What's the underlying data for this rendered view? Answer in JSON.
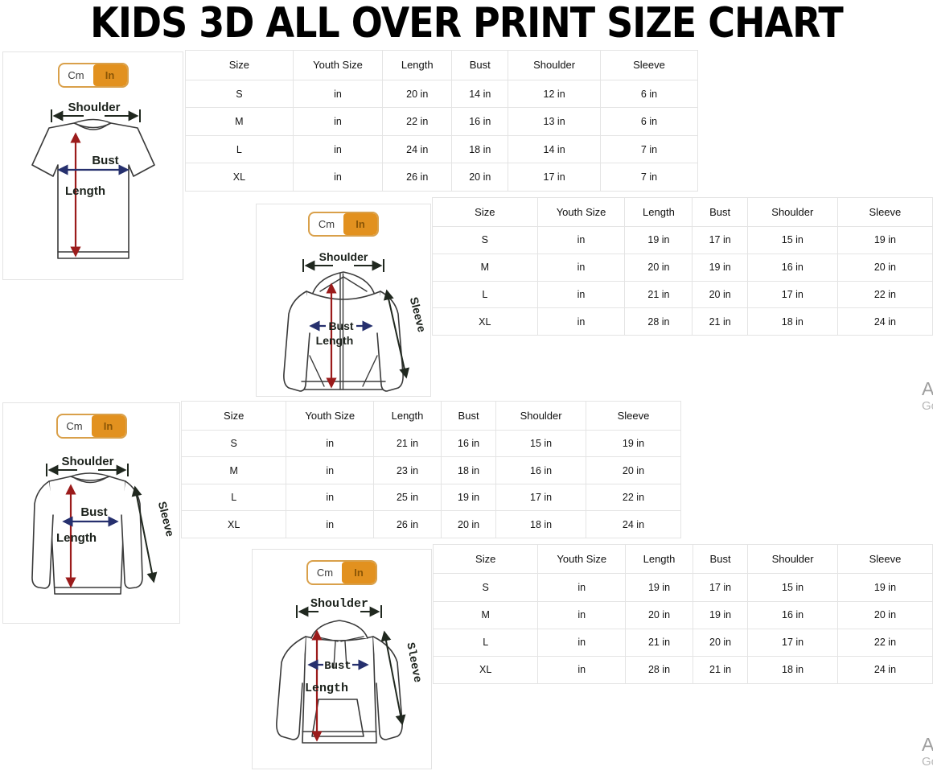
{
  "title": "KIDS 3D ALL OVER PRINT SIZE CHART",
  "unit_toggle": {
    "cm": "Cm",
    "in": "In",
    "selected": "In"
  },
  "diagram_labels": {
    "shoulder": "Shoulder",
    "bust": "Bust",
    "length": "Length",
    "sleeve": "Sleeve"
  },
  "watermark": {
    "line1": "A",
    "line2": "Go"
  },
  "colors": {
    "accent_orange": "#e2911f",
    "toggle_border": "#d9a04a",
    "toggle_in_text": "#8a5505",
    "arrow_red": "#9b1b1b",
    "arrow_navy": "#26306e",
    "arrow_black": "#20281f",
    "table_grid": "#e4e4e4",
    "watermark_gray": "#9e9e9e"
  },
  "sections": [
    {
      "garment": "t-shirt",
      "table": {
        "headers": [
          "Size",
          "Youth Size",
          "Length",
          "Bust",
          "Shoulder",
          "Sleeve"
        ],
        "rows": [
          [
            "S",
            "in",
            "20 in",
            "14 in",
            "12 in",
            "6 in"
          ],
          [
            "M",
            "in",
            "22 in",
            "16 in",
            "13 in",
            "6 in"
          ],
          [
            "L",
            "in",
            "24 in",
            "18 in",
            "14 in",
            "7 in"
          ],
          [
            "XL",
            "in",
            "26 in",
            "20 in",
            "17 in",
            "7 in"
          ]
        ]
      }
    },
    {
      "garment": "zip-hoodie",
      "table": {
        "headers": [
          "Size",
          "Youth Size",
          "Length",
          "Bust",
          "Shoulder",
          "Sleeve"
        ],
        "rows": [
          [
            "S",
            "in",
            "19 in",
            "17 in",
            "15 in",
            "19 in"
          ],
          [
            "M",
            "in",
            "20 in",
            "19 in",
            "16 in",
            "20 in"
          ],
          [
            "L",
            "in",
            "21 in",
            "20 in",
            "17 in",
            "22 in"
          ],
          [
            "XL",
            "in",
            "28 in",
            "21 in",
            "18 in",
            "24 in"
          ]
        ]
      }
    },
    {
      "garment": "long-sleeve-shirt",
      "table": {
        "headers": [
          "Size",
          "Youth Size",
          "Length",
          "Bust",
          "Shoulder",
          "Sleeve"
        ],
        "rows": [
          [
            "S",
            "in",
            "21 in",
            "16 in",
            "15 in",
            "19 in"
          ],
          [
            "M",
            "in",
            "23 in",
            "18 in",
            "16 in",
            "20 in"
          ],
          [
            "L",
            "in",
            "25 in",
            "19 in",
            "17 in",
            "22 in"
          ],
          [
            "XL",
            "in",
            "26 in",
            "20 in",
            "18 in",
            "24 in"
          ]
        ]
      }
    },
    {
      "garment": "hoodie",
      "table": {
        "headers": [
          "Size",
          "Youth Size",
          "Length",
          "Bust",
          "Shoulder",
          "Sleeve"
        ],
        "rows": [
          [
            "S",
            "in",
            "19 in",
            "17 in",
            "15 in",
            "19 in"
          ],
          [
            "M",
            "in",
            "20 in",
            "19 in",
            "16 in",
            "20 in"
          ],
          [
            "L",
            "in",
            "21 in",
            "20 in",
            "17 in",
            "22 in"
          ],
          [
            "XL",
            "in",
            "28 in",
            "21 in",
            "18 in",
            "24 in"
          ]
        ]
      }
    }
  ]
}
